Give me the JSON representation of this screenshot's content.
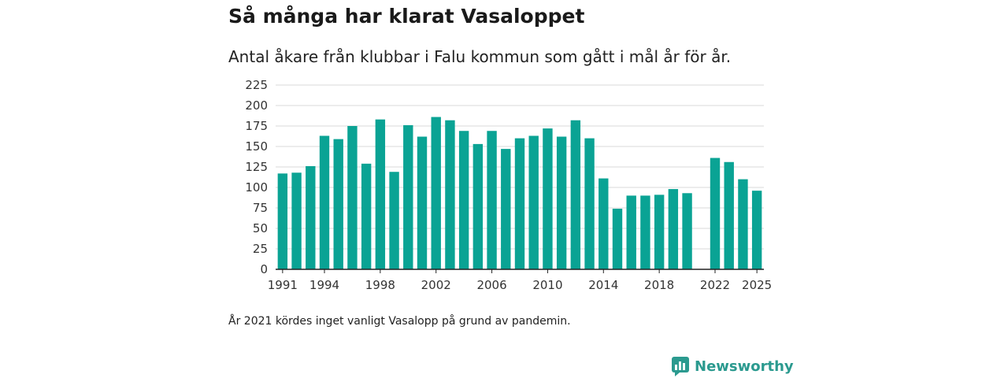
{
  "header": {
    "title": "Så många har klarat Vasaloppet",
    "subtitle": "Antal åkare från klubbar i Falu kommun som gått i mål år för år."
  },
  "footer": {
    "note": "År 2021 kördes inget vanligt Vasalopp på grund av pandemin.",
    "brand": "Newsworthy"
  },
  "colors": {
    "bar": "#0aa394",
    "grid": "#d9d9d9",
    "axis": "#222222",
    "brand": "#2b9a8f"
  },
  "chart_data": {
    "type": "bar",
    "title": "Så många har klarat Vasaloppet",
    "xlabel": "",
    "ylabel": "",
    "ylim": [
      0,
      225
    ],
    "yticks": [
      0,
      25,
      50,
      75,
      100,
      125,
      150,
      175,
      200,
      225
    ],
    "xticks": [
      1991,
      1994,
      1998,
      2002,
      2006,
      2010,
      2014,
      2018,
      2022,
      2025
    ],
    "grid": true,
    "categories": [
      1991,
      1992,
      1993,
      1994,
      1995,
      1996,
      1997,
      1998,
      1999,
      2000,
      2001,
      2002,
      2003,
      2004,
      2005,
      2006,
      2007,
      2008,
      2009,
      2010,
      2011,
      2012,
      2013,
      2014,
      2015,
      2016,
      2017,
      2018,
      2019,
      2020,
      2021,
      2022,
      2023,
      2024,
      2025
    ],
    "values": [
      117,
      118,
      126,
      163,
      159,
      175,
      129,
      183,
      119,
      176,
      162,
      186,
      182,
      169,
      153,
      169,
      147,
      160,
      163,
      172,
      162,
      182,
      160,
      111,
      74,
      90,
      90,
      91,
      98,
      93,
      null,
      136,
      131,
      110,
      96
    ]
  }
}
